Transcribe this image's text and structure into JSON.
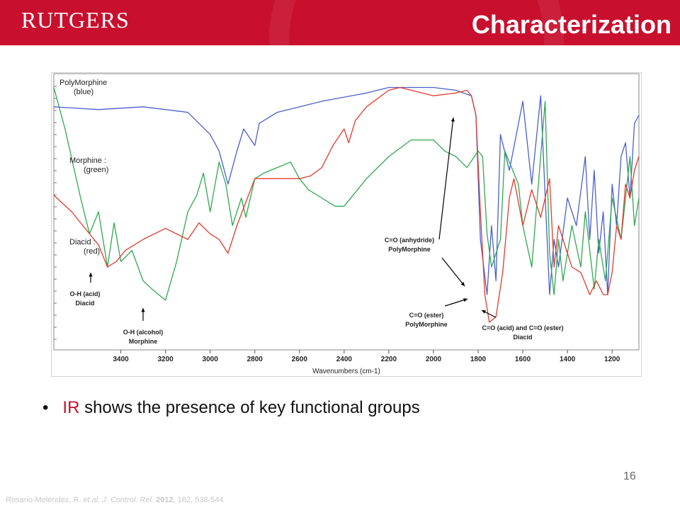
{
  "header": {
    "logo_text": "RUTGERS",
    "title": "Characterization",
    "brand_color": "#c8102e"
  },
  "chart_data": {
    "type": "line",
    "xlabel": "Wavenumbers (cm-1)",
    "ylabel": "",
    "xlim": [
      3700,
      1080
    ],
    "x_reversed": true,
    "ylim": [
      0,
      100
    ],
    "grid": false,
    "x_ticks": [
      3400,
      3200,
      3000,
      2800,
      2600,
      2400,
      2200,
      2000,
      1800,
      1600,
      1400,
      1200
    ],
    "series": [
      {
        "name": "PolyMorphine (blue)",
        "color": "#4a5fd0",
        "x": [
          3700,
          3500,
          3300,
          3100,
          3000,
          2960,
          2920,
          2880,
          2850,
          2800,
          2780,
          2700,
          2500,
          2300,
          2200,
          2000,
          1900,
          1830,
          1810,
          1790,
          1760,
          1740,
          1720,
          1700,
          1660,
          1600,
          1560,
          1520,
          1480,
          1460,
          1440,
          1400,
          1360,
          1320,
          1300,
          1280,
          1260,
          1240,
          1220,
          1200,
          1180,
          1160,
          1140,
          1120,
          1100,
          1080
        ],
        "y": [
          88,
          87,
          88,
          86,
          78,
          72,
          60,
          72,
          80,
          74,
          82,
          86,
          90,
          93,
          95,
          95,
          94,
          92,
          85,
          40,
          20,
          45,
          25,
          78,
          65,
          90,
          60,
          92,
          20,
          40,
          30,
          55,
          45,
          70,
          40,
          65,
          35,
          50,
          20,
          60,
          45,
          70,
          75,
          55,
          82,
          85
        ]
      },
      {
        "name": "Morphine (green)",
        "color": "#2fa84f",
        "x": [
          3700,
          3650,
          3580,
          3540,
          3500,
          3460,
          3430,
          3400,
          3350,
          3300,
          3260,
          3200,
          3150,
          3100,
          3060,
          3030,
          3000,
          2960,
          2930,
          2900,
          2860,
          2840,
          2800,
          2760,
          2700,
          2640,
          2600,
          2560,
          2500,
          2440,
          2400,
          2300,
          2200,
          2100,
          2000,
          1950,
          1900,
          1850,
          1800,
          1780,
          1760,
          1740,
          1700,
          1680,
          1660,
          1620,
          1600,
          1560,
          1530,
          1500,
          1480,
          1460,
          1440,
          1420,
          1380,
          1340,
          1320,
          1280,
          1260,
          1230,
          1200,
          1160,
          1120,
          1100,
          1080
        ],
        "y": [
          95,
          80,
          55,
          42,
          50,
          30,
          46,
          32,
          36,
          25,
          22,
          18,
          32,
          50,
          56,
          64,
          50,
          68,
          60,
          45,
          55,
          48,
          62,
          64,
          66,
          68,
          62,
          58,
          55,
          52,
          52,
          62,
          70,
          76,
          76,
          72,
          70,
          66,
          72,
          70,
          42,
          30,
          40,
          72,
          68,
          60,
          45,
          30,
          60,
          90,
          35,
          20,
          40,
          25,
          45,
          30,
          50,
          22,
          40,
          25,
          55,
          40,
          70,
          45,
          55
        ]
      },
      {
        "name": "Diacid (red)",
        "color": "#e03b2e",
        "x": [
          3700,
          3620,
          3560,
          3500,
          3460,
          3420,
          3380,
          3300,
          3200,
          3100,
          3050,
          3000,
          2960,
          2920,
          2880,
          2800,
          2700,
          2600,
          2550,
          2500,
          2450,
          2400,
          2380,
          2350,
          2300,
          2200,
          2150,
          2100,
          2000,
          1900,
          1850,
          1830,
          1810,
          1790,
          1770,
          1750,
          1720,
          1690,
          1660,
          1640,
          1600,
          1560,
          1520,
          1480,
          1460,
          1440,
          1420,
          1380,
          1340,
          1300,
          1270,
          1240,
          1220,
          1200,
          1180,
          1160,
          1140,
          1120,
          1100,
          1080
        ],
        "y": [
          56,
          50,
          44,
          38,
          30,
          32,
          36,
          40,
          44,
          40,
          46,
          42,
          40,
          35,
          45,
          62,
          62,
          62,
          63,
          66,
          74,
          80,
          75,
          83,
          88,
          94,
          95,
          94,
          92,
          93,
          94,
          92,
          85,
          50,
          20,
          10,
          12,
          28,
          55,
          62,
          45,
          58,
          48,
          62,
          30,
          45,
          40,
          30,
          28,
          20,
          25,
          20,
          20,
          28,
          45,
          40,
          60,
          55,
          65,
          70
        ]
      }
    ],
    "annotations": [
      {
        "text": [
          "PolyMorphine",
          "(blue)"
        ],
        "bold": false
      },
      {
        "text": [
          "Morphine :",
          "(green)"
        ],
        "bold": false
      },
      {
        "text": [
          "Diacid :",
          "(red)"
        ],
        "bold": false
      },
      {
        "text": [
          "O-H (acid)",
          "Diacid"
        ],
        "bold": true
      },
      {
        "text": [
          "O-H (alcohol)",
          "Morphine"
        ],
        "bold": true
      },
      {
        "text": [
          "C=O (anhydride)",
          "PolyMorphine"
        ],
        "bold": true
      },
      {
        "text": [
          "C=O (ester)",
          "PolyMorphine"
        ],
        "bold": true
      },
      {
        "text": [
          "C=O (acid) and C=O (ester)",
          "Diacid"
        ],
        "bold": true
      }
    ]
  },
  "bullet": {
    "marker": "•",
    "highlight": "IR",
    "text": " shows the presence of key functional groups",
    "highlight_color": "#c8102e"
  },
  "footer": {
    "page_number": "16",
    "citation_author": "Rosario-Meléndez, R. ",
    "citation_etal": "et.al. J. Control. Rel. ",
    "citation_year": "2012",
    "citation_rest": ", 162, 538-544"
  }
}
